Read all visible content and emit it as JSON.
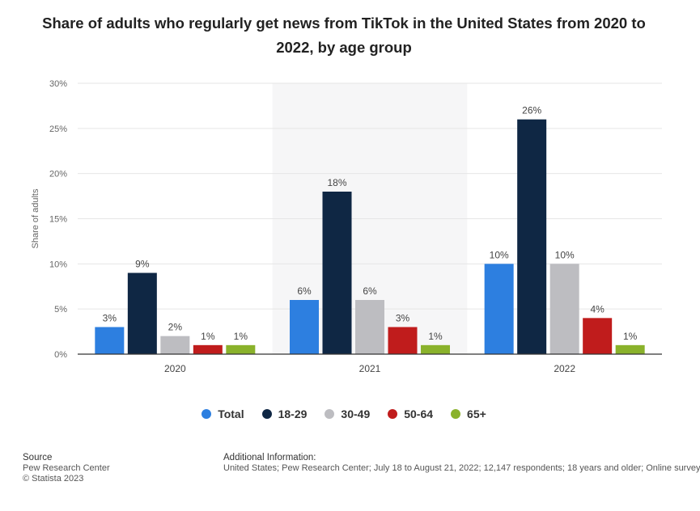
{
  "colors": {
    "Total": "#2d7fe0",
    "18-29": "#0f2744",
    "30-49": "#bdbdc1",
    "50-64": "#c01c1c",
    "65+": "#8ab22b",
    "band": "#f6f6f7",
    "grid": "#e6e6e6",
    "axis": "#333333"
  },
  "chart_data": {
    "type": "bar",
    "title": "Share of adults who regularly get news from TikTok in the United States from 2020 to 2022, by age group",
    "ylabel": "Share of adults",
    "xlabel": "",
    "ylim": [
      0,
      30
    ],
    "yticks": [
      "0%",
      "5%",
      "10%",
      "15%",
      "20%",
      "25%",
      "30%"
    ],
    "categories": [
      "2020",
      "2021",
      "2022"
    ],
    "series": [
      {
        "name": "Total",
        "values": [
          3,
          6,
          10
        ],
        "labels": [
          "3%",
          "6%",
          "10%"
        ]
      },
      {
        "name": "18-29",
        "values": [
          9,
          18,
          26
        ],
        "labels": [
          "9%",
          "18%",
          "26%"
        ]
      },
      {
        "name": "30-49",
        "values": [
          2,
          6,
          10
        ],
        "labels": [
          "2%",
          "6%",
          "10%"
        ]
      },
      {
        "name": "50-64",
        "values": [
          1,
          3,
          4
        ],
        "labels": [
          "1%",
          "3%",
          "4%"
        ]
      },
      {
        "name": "65+",
        "values": [
          1,
          1,
          1
        ],
        "labels": [
          "1%",
          "1%",
          "1%"
        ]
      }
    ],
    "grid": true,
    "legend_position": "bottom"
  },
  "footer": {
    "source_heading": "Source",
    "source_line1": "Pew Research Center",
    "source_line2": "© Statista 2023",
    "info_heading": "Additional Information:",
    "info_text": "United States; Pew Research Center; July 18 to August 21, 2022; 12,147 respondents; 18 years and older; Online survey"
  }
}
